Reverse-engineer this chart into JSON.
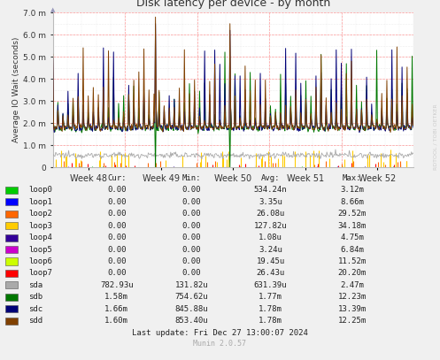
{
  "title": "Disk latency per device - by month",
  "ylabel": "Average IO Wait (seconds)",
  "xlabel_ticks": [
    "Week 48",
    "Week 49",
    "Week 50",
    "Week 51",
    "Week 52"
  ],
  "ylim": [
    0,
    0.007
  ],
  "yticks": [
    0,
    0.001,
    0.002,
    0.003,
    0.004,
    0.005,
    0.006,
    0.007
  ],
  "ytick_labels": [
    "0",
    "1.0 m",
    "2.0 m",
    "3.0 m",
    "4.0 m",
    "5.0 m",
    "6.0 m",
    "7.0 m"
  ],
  "bg_color": "#f0f0f0",
  "plot_bg_color": "#ffffff",
  "watermark": "RDTOOL / TOBI OETKER",
  "munin_version": "Munin 2.0.57",
  "last_update": "Last update: Fri Dec 27 13:00:07 2024",
  "devices": [
    "loop0",
    "loop1",
    "loop2",
    "loop3",
    "loop4",
    "loop5",
    "loop6",
    "loop7",
    "sda",
    "sdb",
    "sdc",
    "sdd"
  ],
  "device_colors": [
    "#00cc00",
    "#0000ff",
    "#ff6600",
    "#ffcc00",
    "#330099",
    "#cc00cc",
    "#ccff00",
    "#ff0000",
    "#aaaaaa",
    "#007700",
    "#000077",
    "#804000"
  ],
  "legend_data": {
    "cur": [
      "0.00",
      "0.00",
      "0.00",
      "0.00",
      "0.00",
      "0.00",
      "0.00",
      "0.00",
      "782.93u",
      "1.58m",
      "1.66m",
      "1.60m"
    ],
    "min": [
      "0.00",
      "0.00",
      "0.00",
      "0.00",
      "0.00",
      "0.00",
      "0.00",
      "0.00",
      "131.82u",
      "754.62u",
      "845.88u",
      "853.40u"
    ],
    "avg": [
      "534.24n",
      "3.35u",
      "26.08u",
      "127.82u",
      "1.08u",
      "3.24u",
      "19.45u",
      "26.43u",
      "631.39u",
      "1.77m",
      "1.78m",
      "1.78m"
    ],
    "max": [
      "3.12m",
      "8.66m",
      "29.52m",
      "34.18m",
      "4.75m",
      "6.84m",
      "11.52m",
      "20.20m",
      "2.47m",
      "12.23m",
      "13.39m",
      "12.25m"
    ]
  }
}
